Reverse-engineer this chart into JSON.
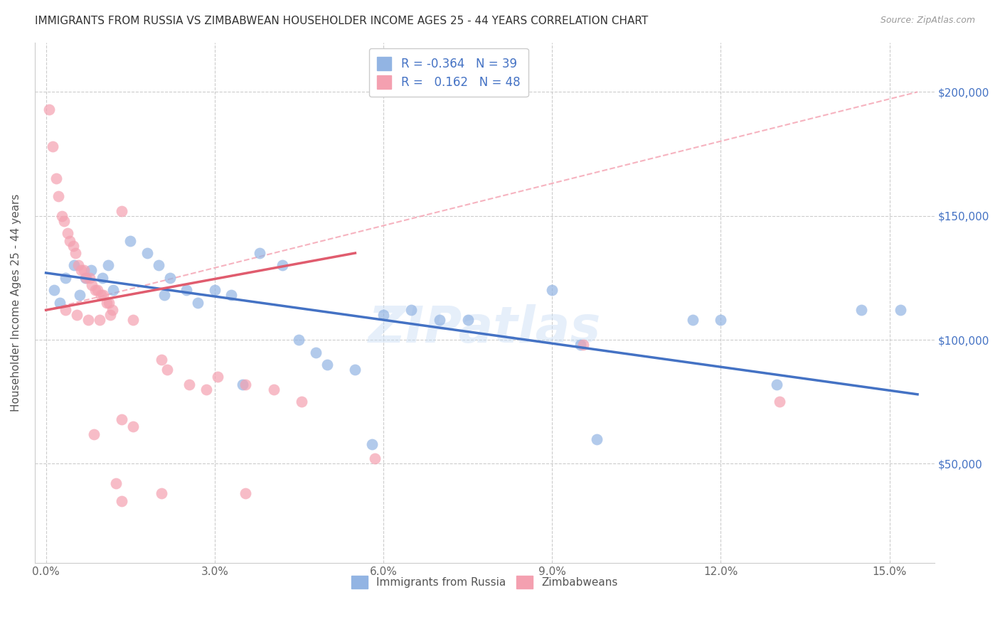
{
  "title": "IMMIGRANTS FROM RUSSIA VS ZIMBABWEAN HOUSEHOLDER INCOME AGES 25 - 44 YEARS CORRELATION CHART",
  "source": "Source: ZipAtlas.com",
  "ylabel": "Householder Income Ages 25 - 44 years",
  "xlabel_ticks": [
    "0.0%",
    "3.0%",
    "6.0%",
    "9.0%",
    "12.0%",
    "15.0%"
  ],
  "xlabel_vals": [
    0.0,
    3.0,
    6.0,
    9.0,
    12.0,
    15.0
  ],
  "ylabel_ticks": [
    "$50,000",
    "$100,000",
    "$150,000",
    "$200,000"
  ],
  "ylabel_vals": [
    50000,
    100000,
    150000,
    200000
  ],
  "ylim": [
    10000,
    220000
  ],
  "xlim": [
    -0.2,
    15.8
  ],
  "russia_R": "-0.364",
  "russia_N": "39",
  "zimbabwe_R": "0.162",
  "zimbabwe_N": "48",
  "russia_color": "#92b4e3",
  "zimbabwe_color": "#f4a0b0",
  "russia_line_color": "#4472c4",
  "zimbabwe_line_color": "#e05c6e",
  "zimbabwe_dashed_color": "#f4a0b0",
  "watermark": "ZIPatlas",
  "russia_scatter": [
    [
      0.15,
      120000
    ],
    [
      0.25,
      115000
    ],
    [
      0.35,
      125000
    ],
    [
      0.5,
      130000
    ],
    [
      0.6,
      118000
    ],
    [
      0.7,
      125000
    ],
    [
      0.8,
      128000
    ],
    [
      1.0,
      125000
    ],
    [
      1.1,
      130000
    ],
    [
      1.2,
      120000
    ],
    [
      1.5,
      140000
    ],
    [
      1.8,
      135000
    ],
    [
      2.0,
      130000
    ],
    [
      2.1,
      118000
    ],
    [
      2.2,
      125000
    ],
    [
      2.5,
      120000
    ],
    [
      2.7,
      115000
    ],
    [
      3.0,
      120000
    ],
    [
      3.3,
      118000
    ],
    [
      3.8,
      135000
    ],
    [
      4.2,
      130000
    ],
    [
      4.5,
      100000
    ],
    [
      4.8,
      95000
    ],
    [
      5.0,
      90000
    ],
    [
      5.5,
      88000
    ],
    [
      6.0,
      110000
    ],
    [
      6.5,
      112000
    ],
    [
      7.0,
      108000
    ],
    [
      7.5,
      108000
    ],
    [
      9.0,
      120000
    ],
    [
      9.5,
      98000
    ],
    [
      11.5,
      108000
    ],
    [
      12.0,
      108000
    ],
    [
      13.0,
      82000
    ],
    [
      14.5,
      112000
    ],
    [
      15.2,
      112000
    ],
    [
      5.8,
      58000
    ],
    [
      9.8,
      60000
    ],
    [
      3.5,
      82000
    ]
  ],
  "zimbabwe_scatter": [
    [
      0.05,
      193000
    ],
    [
      0.12,
      178000
    ],
    [
      0.18,
      165000
    ],
    [
      0.22,
      158000
    ],
    [
      0.28,
      150000
    ],
    [
      0.32,
      148000
    ],
    [
      0.38,
      143000
    ],
    [
      0.42,
      140000
    ],
    [
      0.48,
      138000
    ],
    [
      0.52,
      135000
    ],
    [
      0.58,
      130000
    ],
    [
      0.62,
      128000
    ],
    [
      0.68,
      128000
    ],
    [
      0.72,
      125000
    ],
    [
      0.78,
      125000
    ],
    [
      0.82,
      122000
    ],
    [
      0.88,
      120000
    ],
    [
      0.92,
      120000
    ],
    [
      0.98,
      118000
    ],
    [
      1.02,
      118000
    ],
    [
      1.08,
      115000
    ],
    [
      1.12,
      115000
    ],
    [
      1.18,
      112000
    ],
    [
      0.35,
      112000
    ],
    [
      0.55,
      110000
    ],
    [
      0.75,
      108000
    ],
    [
      0.95,
      108000
    ],
    [
      1.15,
      110000
    ],
    [
      1.35,
      152000
    ],
    [
      1.55,
      108000
    ],
    [
      2.05,
      92000
    ],
    [
      2.15,
      88000
    ],
    [
      2.55,
      82000
    ],
    [
      2.85,
      80000
    ],
    [
      3.05,
      85000
    ],
    [
      3.55,
      82000
    ],
    [
      4.05,
      80000
    ],
    [
      4.55,
      75000
    ],
    [
      1.25,
      42000
    ],
    [
      2.05,
      38000
    ],
    [
      3.55,
      38000
    ],
    [
      1.35,
      35000
    ],
    [
      5.85,
      52000
    ],
    [
      9.55,
      98000
    ],
    [
      13.05,
      75000
    ],
    [
      0.85,
      62000
    ],
    [
      1.35,
      68000
    ],
    [
      1.55,
      65000
    ]
  ]
}
